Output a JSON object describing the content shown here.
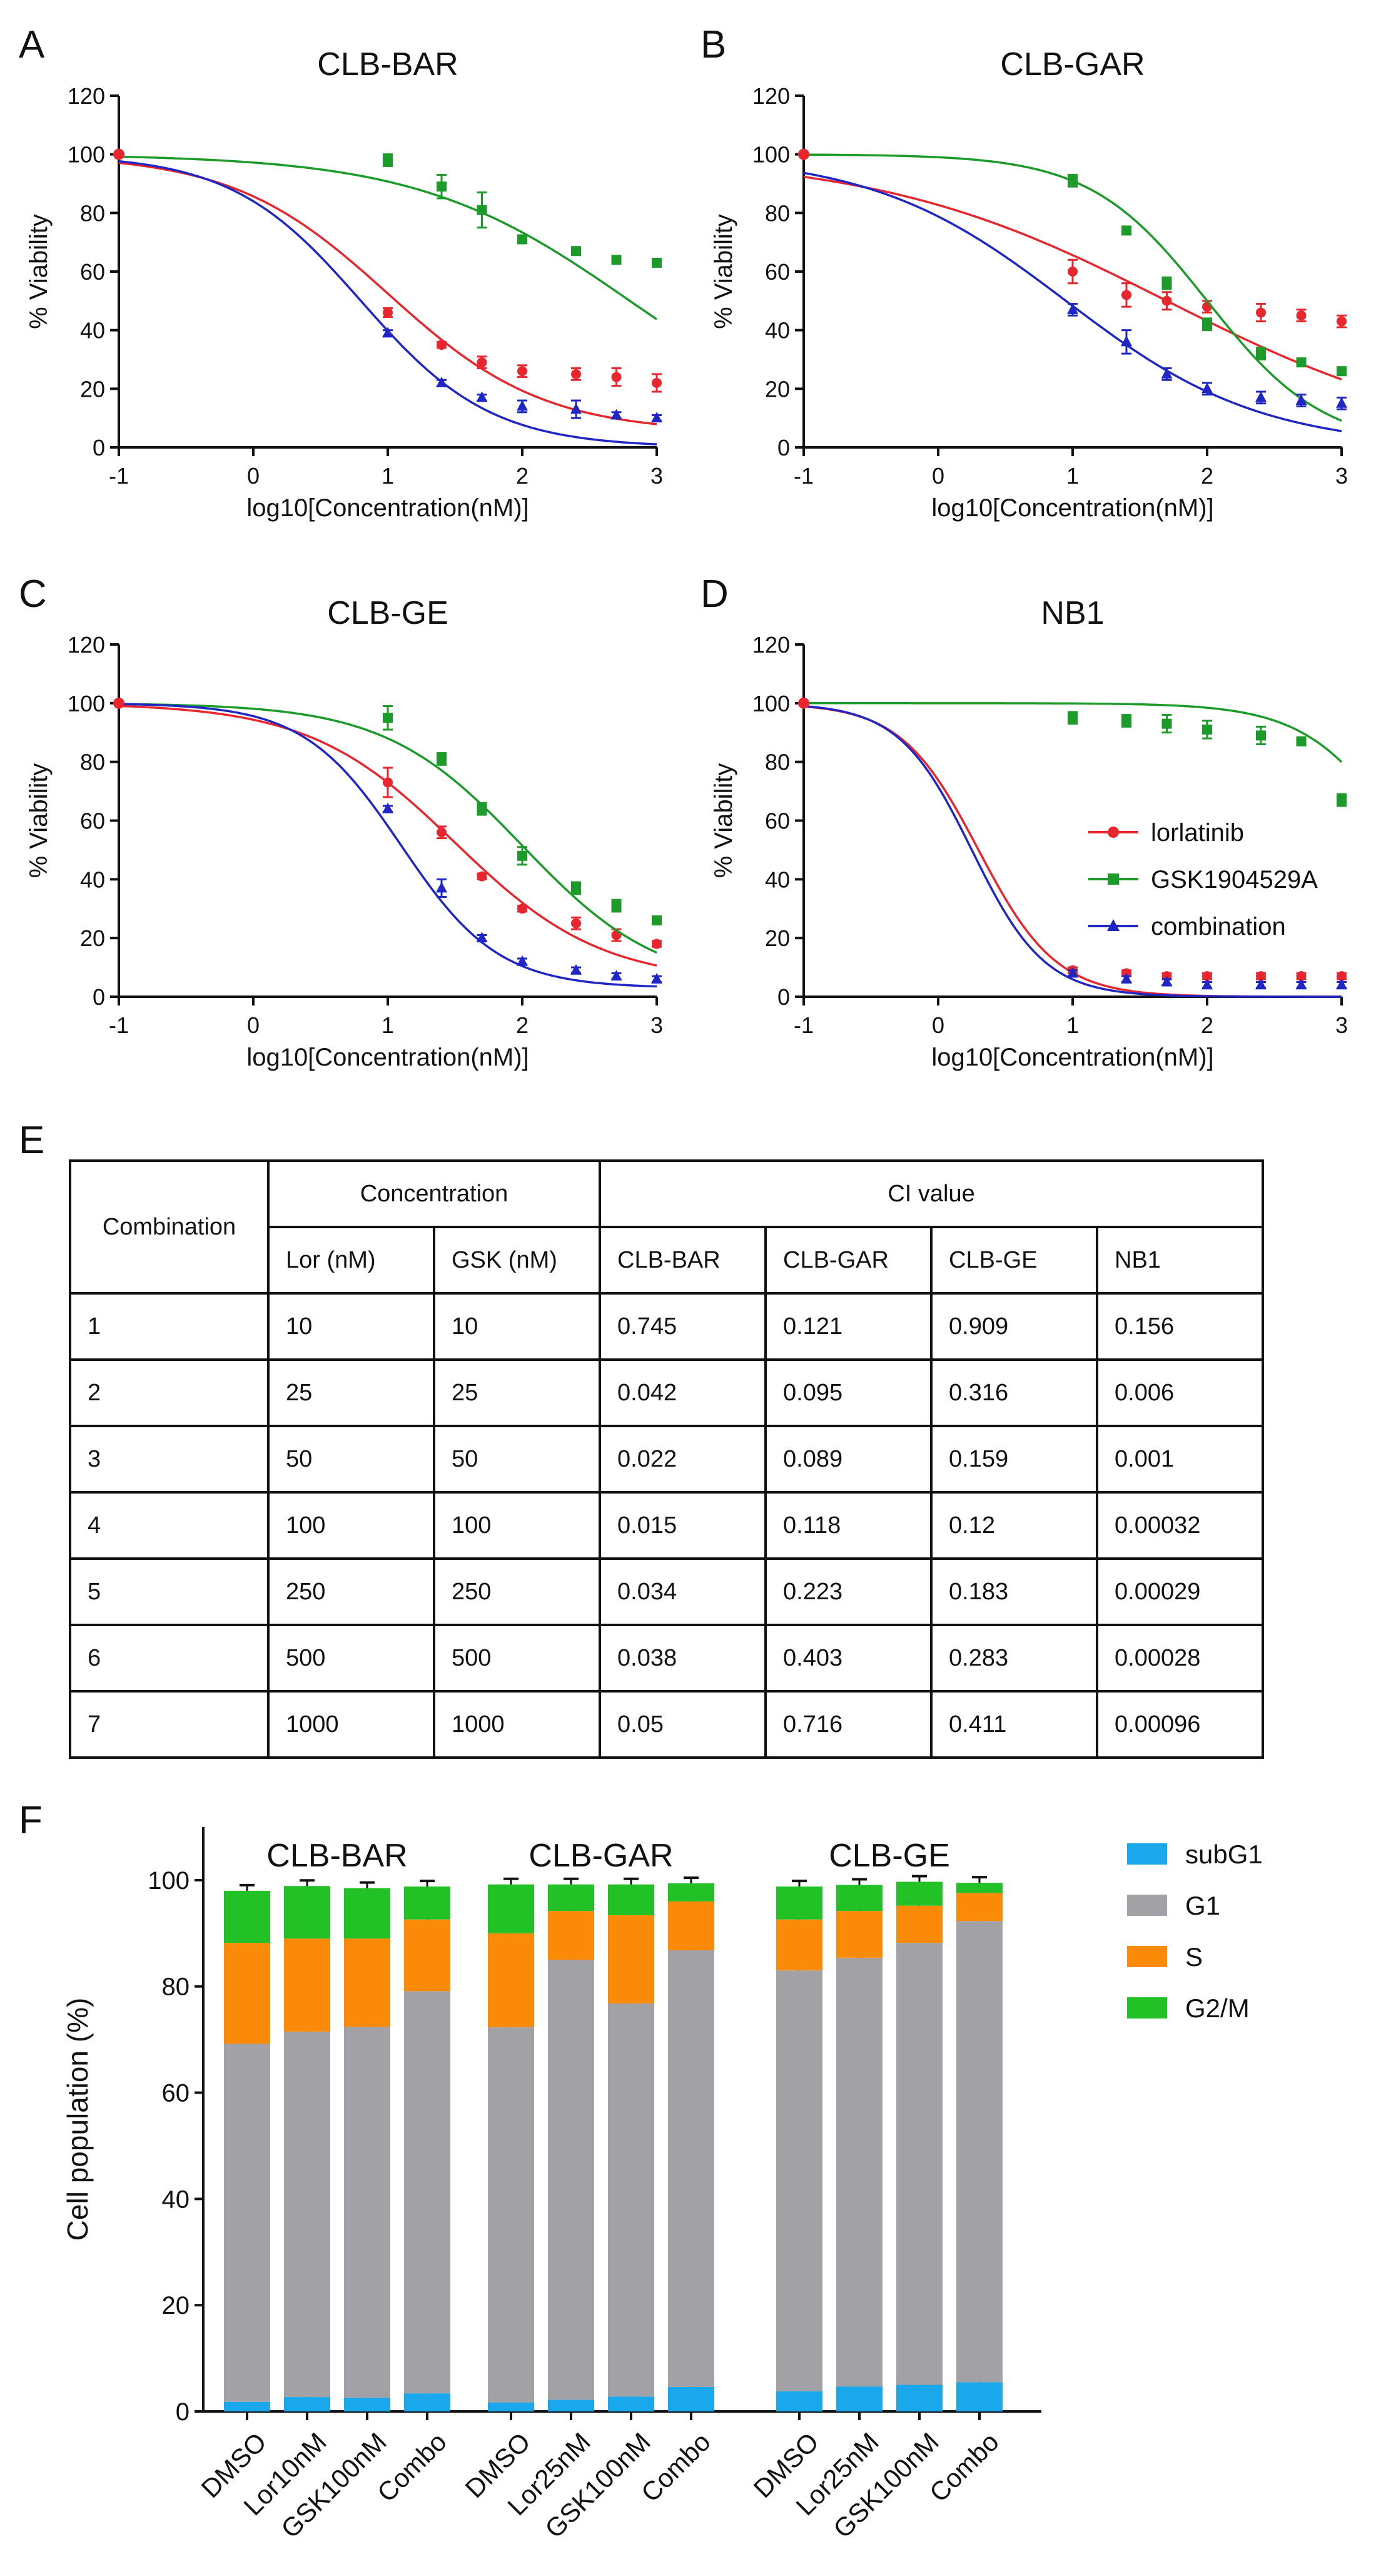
{
  "panels": {
    "A": "A",
    "B": "B",
    "C": "C",
    "D": "D",
    "E": "E",
    "F": "F"
  },
  "colors": {
    "lorlatinib": "#e8262e",
    "gsk": "#1c9a2a",
    "combination": "#1f26c4",
    "subG1": "#1aa7ec",
    "G1": "#a1a1a6",
    "S": "#fb8a09",
    "G2M": "#22c226"
  },
  "chart_data": [
    {
      "type": "scatter",
      "title": "CLB-BAR",
      "xlabel": "log10[Concentration(nM)]",
      "ylabel": "% Viability",
      "xlim": [
        -1,
        3
      ],
      "ylim": [
        0,
        120
      ],
      "xticks": [
        "-1",
        "0",
        "1",
        "2",
        "3"
      ],
      "yticks": [
        "0",
        "20",
        "40",
        "60",
        "80",
        "100",
        "120"
      ],
      "x": [
        1,
        1.4,
        1.7,
        2,
        2.4,
        2.7,
        3
      ],
      "series": [
        {
          "name": "lorlatinib",
          "marker": "circle",
          "values": [
            46,
            35,
            29,
            26,
            25,
            24,
            22
          ],
          "err": [
            1.5,
            1,
            2,
            2,
            2,
            3,
            3
          ],
          "fit_ic50": 1.0,
          "fit_slope": 0.75,
          "fit_bottom": 5
        },
        {
          "name": "GSK1904529A",
          "marker": "square",
          "values": [
            98,
            89,
            81,
            71,
            67,
            64,
            63
          ],
          "err": [
            2,
            4,
            6,
            1,
            1,
            1,
            1
          ],
          "fit_ic50": 2.8,
          "fit_slope": 0.55,
          "fit_bottom": 0
        },
        {
          "name": "combination",
          "marker": "triangle",
          "values": [
            39,
            22,
            17,
            14,
            13,
            11,
            10
          ],
          "err": [
            1,
            1,
            1,
            2,
            3,
            1,
            1
          ],
          "fit_ic50": 0.8,
          "fit_slope": 0.9,
          "fit_bottom": 0
        }
      ]
    },
    {
      "type": "scatter",
      "title": "CLB-GAR",
      "xlabel": "log10[Concentration(nM)]",
      "ylabel": "% Viability",
      "xlim": [
        -1,
        3
      ],
      "ylim": [
        0,
        120
      ],
      "xticks": [
        "-1",
        "0",
        "1",
        "2",
        "3"
      ],
      "yticks": [
        "0",
        "20",
        "40",
        "60",
        "80",
        "100",
        "120"
      ],
      "x": [
        1,
        1.4,
        1.7,
        2,
        2.4,
        2.7,
        3
      ],
      "series": [
        {
          "name": "lorlatinib",
          "marker": "circle",
          "values": [
            60,
            52,
            50,
            48,
            46,
            45,
            43
          ],
          "err": [
            4,
            4,
            3,
            2,
            3,
            2,
            2
          ],
          "fit_ic50": 1.7,
          "fit_slope": 0.4,
          "fit_bottom": 0
        },
        {
          "name": "GSK1904529A",
          "marker": "square",
          "values": [
            91,
            74,
            56,
            42,
            32,
            29,
            26
          ],
          "err": [
            2,
            1,
            2,
            2,
            2,
            1,
            1
          ],
          "fit_ic50": 2.0,
          "fit_slope": 1.0,
          "fit_bottom": 0
        },
        {
          "name": "combination",
          "marker": "triangle",
          "values": [
            47,
            36,
            25,
            20,
            17,
            16,
            15
          ],
          "err": [
            2,
            4,
            2,
            2,
            2,
            2,
            2
          ],
          "fit_ic50": 0.95,
          "fit_slope": 0.6,
          "fit_bottom": 0
        }
      ]
    },
    {
      "type": "scatter",
      "title": "CLB-GE",
      "xlabel": "log10[Concentration(nM)]",
      "ylabel": "% Viability",
      "xlim": [
        -1,
        3
      ],
      "ylim": [
        0,
        120
      ],
      "xticks": [
        "-1",
        "0",
        "1",
        "2",
        "3"
      ],
      "yticks": [
        "0",
        "20",
        "40",
        "60",
        "80",
        "100",
        "120"
      ],
      "x": [
        1,
        1.4,
        1.7,
        2,
        2.4,
        2.7,
        3
      ],
      "series": [
        {
          "name": "lorlatinib",
          "marker": "circle",
          "values": [
            73,
            56,
            41,
            30,
            25,
            21,
            18
          ],
          "err": [
            5,
            2,
            1,
            1,
            2,
            2,
            1
          ],
          "fit_ic50": 1.5,
          "fit_slope": 0.8,
          "fit_bottom": 5
        },
        {
          "name": "GSK1904529A",
          "marker": "square",
          "values": [
            95,
            81,
            64,
            48,
            37,
            31,
            26
          ],
          "err": [
            4,
            2,
            2,
            3,
            2,
            2,
            1
          ],
          "fit_ic50": 2.0,
          "fit_slope": 0.85,
          "fit_bottom": 3
        },
        {
          "name": "combination",
          "marker": "triangle",
          "values": [
            64,
            37,
            20,
            12,
            9,
            7,
            6
          ],
          "err": [
            1,
            3,
            1,
            1,
            1,
            1,
            1
          ],
          "fit_ic50": 1.1,
          "fit_slope": 1.2,
          "fit_bottom": 3
        }
      ]
    },
    {
      "type": "scatter",
      "title": "NB1",
      "xlabel": "log10[Concentration(nM)]",
      "ylabel": "% Viability",
      "xlim": [
        -1,
        3
      ],
      "ylim": [
        0,
        120
      ],
      "xticks": [
        "-1",
        "0",
        "1",
        "2",
        "3"
      ],
      "yticks": [
        "0",
        "20",
        "40",
        "60",
        "80",
        "100",
        "120"
      ],
      "x": [
        1,
        1.4,
        1.7,
        2,
        2.4,
        2.7,
        3
      ],
      "legend": [
        "lorlatinib",
        "GSK1904529A",
        "combination"
      ],
      "legend_position": "right",
      "series": [
        {
          "name": "lorlatinib",
          "marker": "circle",
          "values": [
            9,
            8,
            7,
            7,
            7,
            7,
            7
          ],
          "err": [
            1,
            1,
            1,
            1,
            1,
            1,
            1
          ],
          "fit_ic50": 0.3,
          "fit_slope": 1.5,
          "fit_bottom": 0
        },
        {
          "name": "GSK1904529A",
          "marker": "square",
          "values": [
            95,
            94,
            93,
            91,
            89,
            87,
            67
          ],
          "err": [
            2,
            2,
            3,
            3,
            3,
            1,
            2
          ],
          "fit_ic50": 3.5,
          "fit_slope": 1.2,
          "fit_bottom": 0
        },
        {
          "name": "combination",
          "marker": "triangle",
          "values": [
            8,
            6,
            5,
            4,
            4,
            4,
            4
          ],
          "err": [
            1,
            1,
            1,
            1,
            1,
            1,
            1
          ],
          "fit_ic50": 0.25,
          "fit_slope": 1.6,
          "fit_bottom": 0
        }
      ]
    },
    {
      "type": "table",
      "title": "CI value table",
      "header1": {
        "combination": "Combination",
        "concentration": "Concentration",
        "ci": "CI value"
      },
      "header2": [
        "Lor (nM)",
        "GSK (nM)",
        "CLB-BAR",
        "CLB-GAR",
        "CLB-GE",
        "NB1"
      ],
      "rows": [
        [
          "1",
          "10",
          "10",
          "0.745",
          "0.121",
          "0.909",
          "0.156"
        ],
        [
          "2",
          "25",
          "25",
          "0.042",
          "0.095",
          "0.316",
          "0.006"
        ],
        [
          "3",
          "50",
          "50",
          "0.022",
          "0.089",
          "0.159",
          "0.001"
        ],
        [
          "4",
          "100",
          "100",
          "0.015",
          "0.118",
          "0.12",
          "0.00032"
        ],
        [
          "5",
          "250",
          "250",
          "0.034",
          "0.223",
          "0.183",
          "0.00029"
        ],
        [
          "6",
          "500",
          "500",
          "0.038",
          "0.403",
          "0.283",
          "0.00028"
        ],
        [
          "7",
          "1000",
          "1000",
          "0.05",
          "0.716",
          "0.411",
          "0.00096"
        ]
      ]
    },
    {
      "type": "bar",
      "stacked": true,
      "ylabel": "Cell population (%)",
      "ylim": [
        0,
        110
      ],
      "yticks": [
        "0",
        "20",
        "40",
        "60",
        "80",
        "100"
      ],
      "legend": [
        "subG1",
        "G1",
        "S",
        "G2/M"
      ],
      "legend_position": "top-right",
      "groups": [
        {
          "title": "CLB-BAR",
          "categories": [
            "DMSO",
            "Lor10nM",
            "GSK100nM",
            "Combo"
          ],
          "subG1": [
            1.8,
            2.7,
            2.6,
            3.4
          ],
          "G1": [
            67.4,
            68.8,
            69.8,
            75.7
          ],
          "S": [
            19,
            17.5,
            16.6,
            13.5
          ],
          "G2M": [
            9.8,
            9.9,
            9.5,
            6.2
          ]
        },
        {
          "title": "CLB-GAR",
          "categories": [
            "DMSO",
            "Lor25nM",
            "GSK100nM",
            "Combo"
          ],
          "subG1": [
            1.7,
            2.2,
            2.8,
            4.6
          ],
          "G1": [
            70.6,
            82.8,
            74.0,
            82.2
          ],
          "S": [
            17.7,
            9.2,
            16.6,
            9.2
          ],
          "G2M": [
            9.2,
            5.0,
            5.8,
            3.4
          ]
        },
        {
          "title": "CLB-GE",
          "categories": [
            "DMSO",
            "Lor25nM",
            "GSK100nM",
            "Combo"
          ],
          "subG1": [
            3.8,
            4.7,
            5.0,
            5.5
          ],
          "G1": [
            79.2,
            80.7,
            83.2,
            86.8
          ],
          "S": [
            9.6,
            8.8,
            7.0,
            5.3
          ],
          "G2M": [
            6.2,
            4.9,
            4.5,
            1.9
          ]
        }
      ]
    }
  ]
}
